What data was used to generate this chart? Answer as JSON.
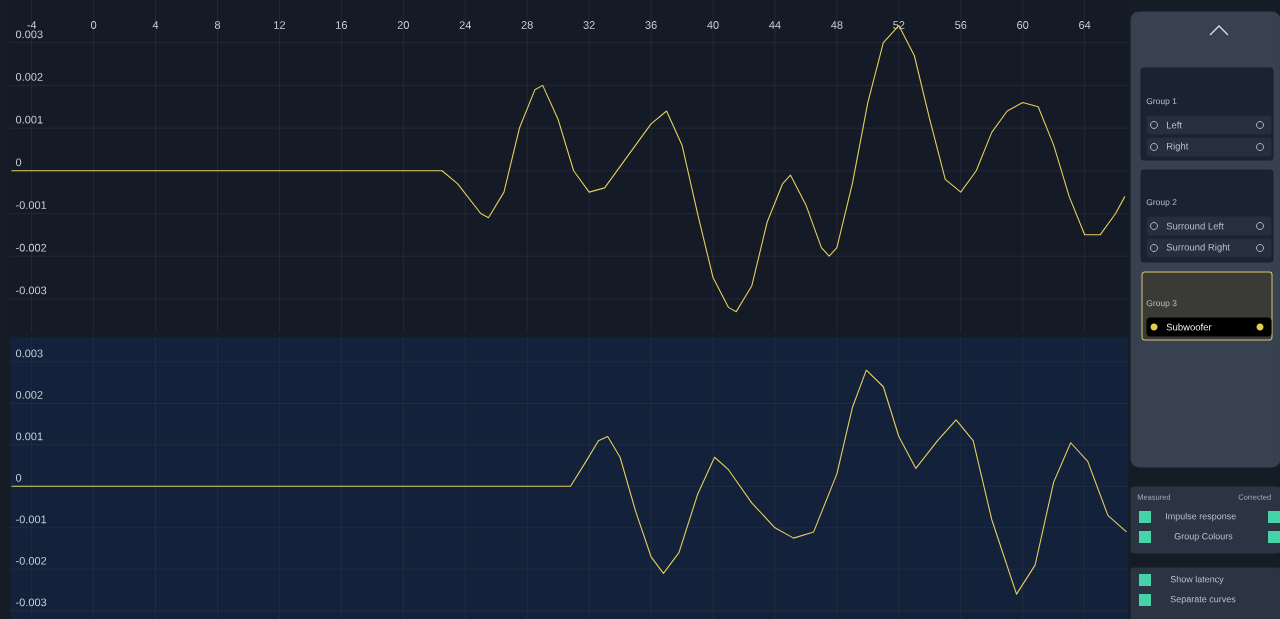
{
  "chart_data": [
    {
      "type": "line",
      "color": "#e3cf5e",
      "grid": true,
      "xlim": [
        -5.4,
        66.8
      ],
      "ylim": [
        -0.0038,
        0.004
      ],
      "xticks": [
        -4,
        0,
        4,
        8,
        12,
        16,
        20,
        24,
        28,
        32,
        36,
        40,
        44,
        48,
        52,
        56,
        60,
        64
      ],
      "yticks": [
        -0.003,
        -0.002,
        -0.001,
        0,
        0.001,
        0.002,
        0.003
      ],
      "x": [
        -5.3,
        22.5,
        23.5,
        25,
        25.5,
        26.5,
        27.5,
        28.5,
        29,
        30,
        31,
        32,
        33,
        35,
        36,
        37,
        38,
        39,
        40,
        41,
        41.5,
        42.5,
        43.5,
        44.5,
        45,
        46,
        47,
        47.5,
        48,
        49,
        50,
        51,
        52,
        53,
        54,
        55,
        56,
        57,
        58,
        59,
        60,
        61,
        62,
        63,
        64,
        65,
        66,
        66.6
      ],
      "values": [
        0,
        0,
        -0.0003,
        -0.001,
        -0.0011,
        -0.0005,
        0.001,
        0.0019,
        0.002,
        0.0012,
        0,
        -0.0005,
        -0.0004,
        0.0006,
        0.0011,
        0.0014,
        0.0006,
        -0.001,
        -0.0025,
        -0.0032,
        -0.0033,
        -0.0027,
        -0.0012,
        -0.0003,
        -0.0001,
        -0.0008,
        -0.0018,
        -0.002,
        -0.0018,
        -0.0003,
        0.0016,
        0.003,
        0.0034,
        0.0027,
        0.0012,
        -0.0002,
        -0.0005,
        0,
        0.0009,
        0.0014,
        0.0016,
        0.0015,
        0.0006,
        -0.0006,
        -0.0015,
        -0.0015,
        -0.001,
        -0.0006
      ]
    },
    {
      "type": "line",
      "color": "#e3cf5e",
      "grid": true,
      "tick_labels": "y",
      "xlim": [
        -5.4,
        66.8
      ],
      "ylim": [
        -0.0032,
        0.0036
      ],
      "xticks": [
        -4,
        0,
        4,
        8,
        12,
        16,
        20,
        24,
        28,
        32,
        36,
        40,
        44,
        48,
        52,
        56,
        60,
        64
      ],
      "yticks": [
        -0.003,
        -0.002,
        -0.001,
        0,
        0.001,
        0.002,
        0.003
      ],
      "x": [
        -5.3,
        30.8,
        31.8,
        32.6,
        33.2,
        34,
        35,
        36,
        36.8,
        37.8,
        39,
        40.1,
        41,
        42.5,
        44,
        45.2,
        46.5,
        48,
        49,
        49.9,
        51,
        52,
        53.1,
        54.5,
        55.7,
        56.8,
        58,
        59.6,
        60.8,
        62,
        63.1,
        64.2,
        65.5,
        66.7
      ],
      "values": [
        0,
        0,
        0.0006,
        0.0011,
        0.0012,
        0.0007,
        -0.0006,
        -0.0017,
        -0.0021,
        -0.0016,
        -0.0002,
        0.0007,
        0.0004,
        -0.0004,
        -0.001,
        -0.00125,
        -0.0011,
        0.0003,
        0.0019,
        0.0028,
        0.0024,
        0.0012,
        0.00043,
        0.0011,
        0.0016,
        0.0011,
        -0.0008,
        -0.0026,
        -0.0019,
        0.0001,
        0.00105,
        0.0006,
        -0.0007,
        -0.0011
      ]
    },
    {
      "type": "other",
      "annotations": [
        "Group 1",
        "Left",
        "Right",
        "Group 2",
        "Surround Left",
        "Surround Right",
        "Group 3",
        "Subwoofer",
        "Measured",
        "Corrected",
        "Impulse response",
        "Group Colours",
        "Show latency",
        "Separate curves"
      ]
    }
  ]
}
